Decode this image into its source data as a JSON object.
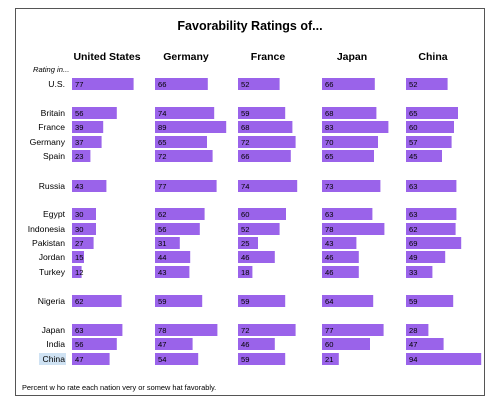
{
  "chart_data": {
    "type": "bar",
    "title": "Favorability Ratings of...",
    "row_header": "Rating in...",
    "footnote": "Percent w ho rate each nation very or somew hat favorably.",
    "bar_color": "#9a63ea",
    "highlight_color": "#cfe2f3",
    "highlighted_row": "China",
    "columns": [
      "United States",
      "Germany",
      "France",
      "Japan",
      "China"
    ],
    "categories": [
      "U.S.",
      "Britain",
      "France",
      "Germany",
      "Spain",
      "Russia",
      "Egypt",
      "Indonesia",
      "Pakistan",
      "Jordan",
      "Turkey",
      "Nigeria",
      "Japan",
      "India",
      "China"
    ],
    "series": [
      {
        "name": "United States",
        "values": [
          77,
          56,
          39,
          37,
          23,
          43,
          30,
          30,
          27,
          15,
          12,
          62,
          63,
          56,
          47
        ]
      },
      {
        "name": "Germany",
        "values": [
          66,
          74,
          89,
          65,
          72,
          77,
          62,
          56,
          31,
          44,
          43,
          59,
          78,
          47,
          54
        ]
      },
      {
        "name": "France",
        "values": [
          52,
          59,
          68,
          72,
          66,
          74,
          60,
          52,
          25,
          46,
          18,
          59,
          72,
          46,
          59
        ]
      },
      {
        "name": "Japan",
        "values": [
          66,
          68,
          83,
          70,
          65,
          73,
          63,
          78,
          43,
          46,
          46,
          64,
          77,
          60,
          21
        ]
      },
      {
        "name": "China",
        "values": [
          52,
          65,
          60,
          57,
          45,
          63,
          63,
          62,
          69,
          49,
          33,
          59,
          28,
          47,
          94
        ]
      }
    ],
    "xlim": [
      0,
      100
    ],
    "grid": false,
    "legend": "none"
  }
}
